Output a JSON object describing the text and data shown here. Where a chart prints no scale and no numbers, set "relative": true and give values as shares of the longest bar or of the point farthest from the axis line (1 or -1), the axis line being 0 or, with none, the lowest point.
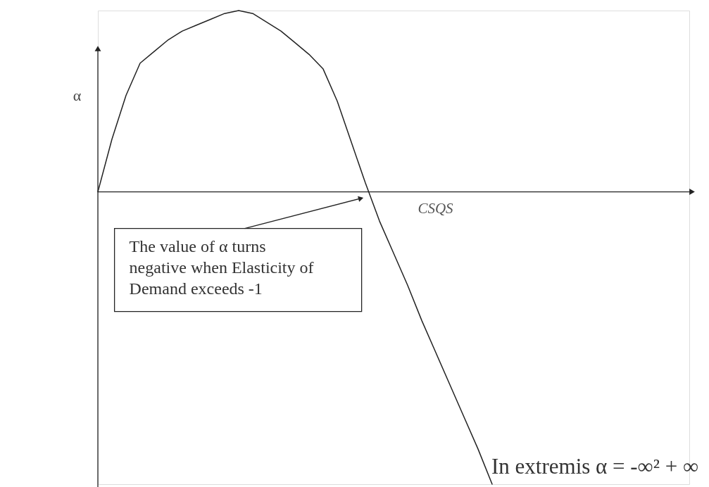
{
  "chart_data": {
    "type": "line",
    "relative": true,
    "xlabel": "CSQS",
    "ylabel": "α",
    "categories": [
      null,
      null,
      null,
      null,
      null,
      null,
      null,
      null,
      null,
      null,
      null,
      null,
      null,
      null,
      null,
      null,
      null,
      null,
      null,
      null,
      null,
      null,
      null,
      null,
      null,
      null,
      null,
      null,
      null,
      null,
      null,
      null,
      null,
      null,
      null,
      null,
      null,
      null,
      null,
      null,
      null,
      null,
      null
    ],
    "series": [
      {
        "color": "#222222",
        "values": [
          0,
          0.18,
          0.33,
          0.44,
          0.48,
          0.52,
          0.55,
          0.57,
          0.59,
          0.61,
          0.62,
          0.61,
          0.58,
          0.55,
          0.51,
          0.47,
          0.42,
          0.31,
          0.17,
          0.03,
          -0.1,
          -0.21,
          -0.32,
          -0.44,
          -0.55,
          -0.66,
          -0.77,
          -0.88,
          -1,
          null,
          null,
          null,
          null,
          null,
          null,
          null,
          null,
          null,
          null,
          null,
          null,
          null,
          null
        ]
      }
    ],
    "annotations": [
      "The value of α turns negative when Elasticity of Demand exceeds -1",
      "In extremis α = -∞² + ∞"
    ]
  }
}
